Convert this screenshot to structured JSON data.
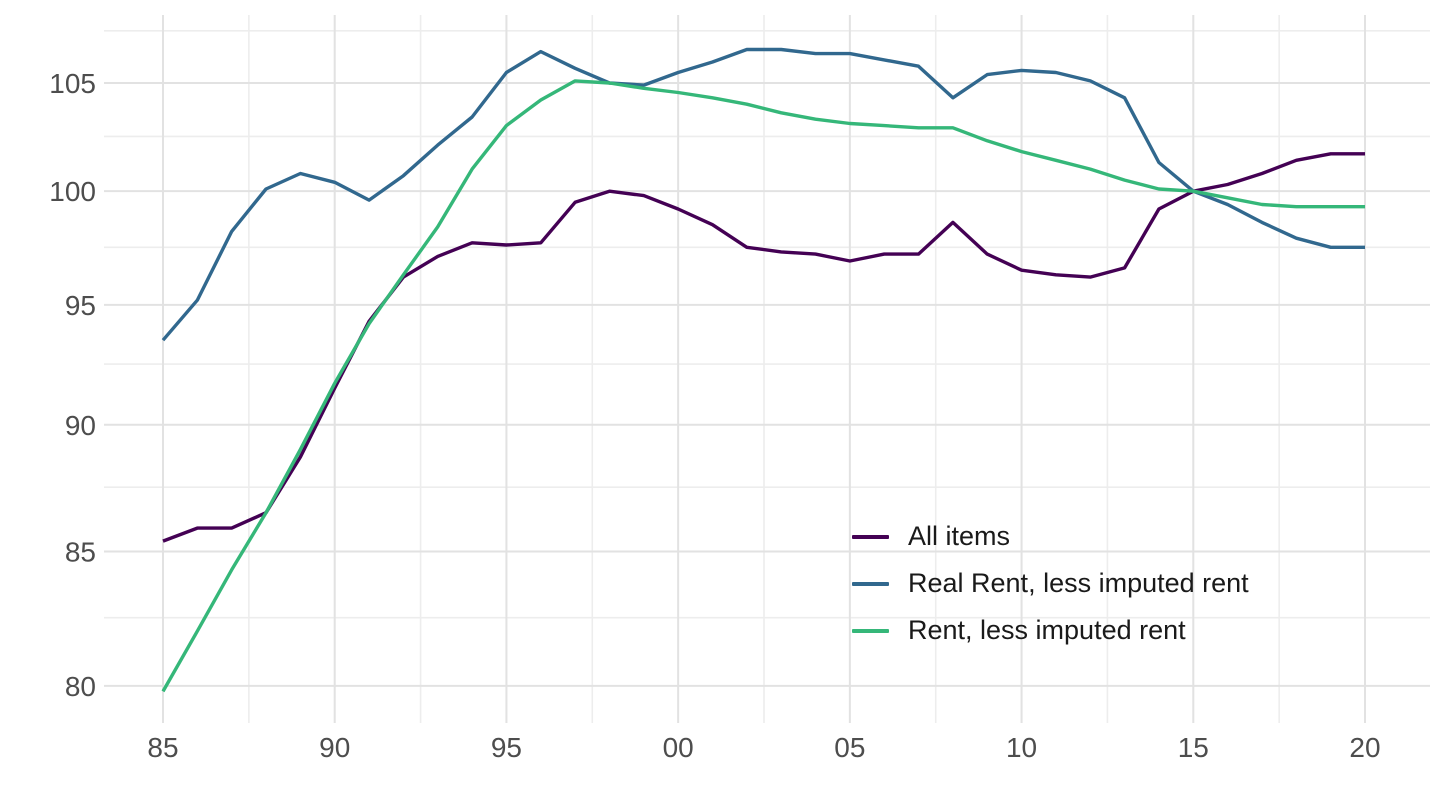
{
  "chart_data": {
    "type": "line",
    "title": "",
    "xlabel": "",
    "ylabel": "",
    "scale": {
      "y": "log10",
      "x": "linear"
    },
    "x_years": [
      1985,
      1986,
      1987,
      1988,
      1989,
      1990,
      1991,
      1992,
      1993,
      1994,
      1995,
      1996,
      1997,
      1998,
      1999,
      2000,
      2001,
      2002,
      2003,
      2004,
      2005,
      2006,
      2007,
      2008,
      2009,
      2010,
      2011,
      2012,
      2013,
      2014,
      2015,
      2016,
      2017,
      2018,
      2019,
      2020
    ],
    "series": [
      {
        "name": "All items",
        "color": "#440154",
        "values": [
          85.4,
          85.9,
          85.9,
          86.5,
          88.7,
          91.5,
          94.3,
          96.2,
          97.1,
          97.7,
          97.6,
          97.7,
          99.5,
          100.0,
          99.8,
          99.2,
          98.5,
          97.5,
          97.3,
          97.2,
          96.9,
          97.2,
          97.2,
          98.6,
          97.2,
          96.5,
          96.3,
          96.2,
          96.6,
          99.2,
          100.0,
          100.3,
          100.8,
          101.4,
          101.7,
          101.7
        ]
      },
      {
        "name": "Real Rent, less imputed rent",
        "color": "#31688E",
        "values": [
          93.5,
          95.2,
          98.2,
          100.1,
          100.8,
          100.4,
          99.6,
          100.7,
          102.1,
          103.4,
          105.5,
          106.5,
          105.7,
          105.0,
          104.9,
          105.5,
          106.0,
          106.6,
          106.6,
          106.4,
          106.4,
          106.1,
          105.8,
          104.3,
          105.4,
          105.6,
          105.5,
          105.1,
          104.3,
          101.3,
          100.0,
          99.4,
          98.6,
          97.9,
          97.5,
          97.5
        ]
      },
      {
        "name": "Rent, less imputed rent",
        "color": "#35B779",
        "values": [
          79.8,
          82.0,
          84.3,
          86.5,
          89.0,
          91.7,
          94.2,
          96.3,
          98.4,
          101.0,
          103.0,
          104.2,
          105.1,
          105.0,
          104.75,
          104.55,
          104.3,
          104.0,
          103.6,
          103.3,
          103.1,
          103.0,
          102.9,
          102.9,
          102.3,
          101.8,
          101.4,
          101.0,
          100.5,
          100.1,
          100.0,
          99.7,
          99.4,
          99.3,
          99.3,
          99.3
        ]
      }
    ],
    "x_axis": {
      "tick_years": [
        1985,
        1990,
        1995,
        2000,
        2005,
        2010,
        2015,
        2020
      ],
      "tick_labels": [
        "85",
        "90",
        "95",
        "00",
        "05",
        "10",
        "15",
        "20"
      ],
      "minor_years": [
        1987.5,
        1992.5,
        1997.5,
        2002.5,
        2007.5,
        2012.5,
        2017.5
      ]
    },
    "y_axis": {
      "tick_values": [
        105,
        100,
        95,
        90,
        85,
        80
      ],
      "tick_labels": [
        "105",
        "100",
        "95",
        "90",
        "85",
        "80"
      ],
      "minor_values": [
        107.5,
        102.5,
        97.5,
        92.5,
        87.5,
        82.5
      ]
    },
    "legend_position": "inside-right",
    "grid": {
      "major_color": "#E2E2E2",
      "minor_color": "#EDEDED",
      "background": "#FFFFFF"
    },
    "colors": {
      "axis_text": "#4D4D4D",
      "legend_text": "#1A1A1A"
    }
  }
}
